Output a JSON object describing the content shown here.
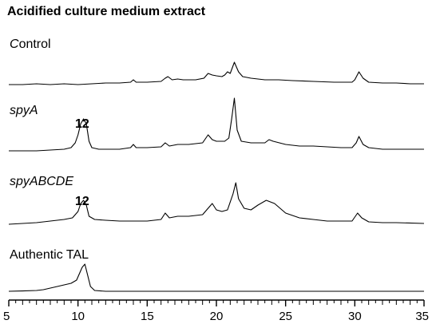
{
  "title": "Acidified culture medium extract",
  "traces": [
    {
      "label_first": "C",
      "label_rest": "ontrol"
    },
    {
      "label": "spyA",
      "italic": true
    },
    {
      "label": "spyABCDE",
      "italic": true
    },
    {
      "label": "Authentic TAL",
      "italic": false
    }
  ],
  "peak_labels": [
    {
      "text": "12",
      "trace": 1
    },
    {
      "text": "12",
      "trace": 2
    }
  ],
  "chart_data": {
    "type": "line",
    "title": "Acidified culture medium extract",
    "xlabel": "",
    "ylabel": "",
    "xlim": [
      5,
      35
    ],
    "xticks": [
      5,
      10,
      15,
      20,
      25,
      30,
      35
    ],
    "x_minor_step": 0.5,
    "grid": false,
    "legend": "none",
    "series": [
      {
        "name": "Control",
        "baseline": 0,
        "points": [
          [
            5,
            0
          ],
          [
            6,
            0
          ],
          [
            7,
            0.5
          ],
          [
            8,
            0
          ],
          [
            9,
            0.5
          ],
          [
            10,
            0
          ],
          [
            11,
            0.5
          ],
          [
            12,
            1
          ],
          [
            13,
            1
          ],
          [
            13.8,
            1.5
          ],
          [
            14,
            3
          ],
          [
            14.2,
            1.5
          ],
          [
            15,
            1.5
          ],
          [
            16,
            2
          ],
          [
            16.3,
            4
          ],
          [
            16.5,
            5
          ],
          [
            16.8,
            3
          ],
          [
            17.2,
            3.5
          ],
          [
            17.6,
            3
          ],
          [
            18.5,
            3
          ],
          [
            19.1,
            4
          ],
          [
            19.4,
            7
          ],
          [
            19.7,
            6
          ],
          [
            20,
            5.5
          ],
          [
            20.4,
            5
          ],
          [
            20.6,
            6
          ],
          [
            20.8,
            8
          ],
          [
            21,
            7
          ],
          [
            21.3,
            14
          ],
          [
            21.6,
            8
          ],
          [
            21.9,
            5
          ],
          [
            22.5,
            4
          ],
          [
            23.5,
            3
          ],
          [
            24.5,
            3
          ],
          [
            25.5,
            2.5
          ],
          [
            27,
            2
          ],
          [
            28.5,
            1.5
          ],
          [
            29.8,
            1.5
          ],
          [
            30,
            3
          ],
          [
            30.3,
            8
          ],
          [
            30.6,
            4
          ],
          [
            31,
            1.5
          ],
          [
            32,
            1
          ],
          [
            33,
            1
          ],
          [
            34,
            0.5
          ],
          [
            35,
            0.5
          ]
        ]
      },
      {
        "name": "spyA",
        "baseline": 0,
        "points": [
          [
            5,
            0
          ],
          [
            6,
            0
          ],
          [
            7,
            0
          ],
          [
            8,
            0.5
          ],
          [
            9,
            1
          ],
          [
            9.5,
            2
          ],
          [
            9.8,
            5
          ],
          [
            10,
            10
          ],
          [
            10.2,
            17
          ],
          [
            10.4,
            20
          ],
          [
            10.6,
            17
          ],
          [
            10.8,
            6
          ],
          [
            11,
            2
          ],
          [
            11.5,
            1
          ],
          [
            12,
            1
          ],
          [
            13,
            1
          ],
          [
            13.8,
            2
          ],
          [
            14,
            4
          ],
          [
            14.2,
            2
          ],
          [
            15,
            2
          ],
          [
            16,
            2.5
          ],
          [
            16.3,
            5
          ],
          [
            16.6,
            3
          ],
          [
            17.2,
            4
          ],
          [
            18,
            4
          ],
          [
            19,
            5
          ],
          [
            19.4,
            10
          ],
          [
            19.7,
            7
          ],
          [
            20,
            6
          ],
          [
            20.6,
            6
          ],
          [
            20.9,
            8
          ],
          [
            21.1,
            20
          ],
          [
            21.3,
            33
          ],
          [
            21.5,
            13
          ],
          [
            21.8,
            6
          ],
          [
            22.5,
            5
          ],
          [
            23.5,
            5
          ],
          [
            23.8,
            7
          ],
          [
            24.1,
            6
          ],
          [
            25,
            4
          ],
          [
            26,
            3
          ],
          [
            27,
            3
          ],
          [
            28,
            2.5
          ],
          [
            29,
            2
          ],
          [
            29.8,
            2
          ],
          [
            30.1,
            5
          ],
          [
            30.3,
            9
          ],
          [
            30.6,
            4
          ],
          [
            31,
            2
          ],
          [
            32,
            1
          ],
          [
            33,
            1
          ],
          [
            35,
            1
          ]
        ]
      },
      {
        "name": "spyABCDE",
        "baseline": 0,
        "points": [
          [
            5,
            0
          ],
          [
            6,
            0.5
          ],
          [
            7,
            1
          ],
          [
            8,
            2
          ],
          [
            9,
            3
          ],
          [
            9.6,
            4
          ],
          [
            10,
            8
          ],
          [
            10.2,
            13
          ],
          [
            10.4,
            15
          ],
          [
            10.6,
            12
          ],
          [
            10.8,
            5
          ],
          [
            11.2,
            3
          ],
          [
            12,
            2.5
          ],
          [
            13,
            2
          ],
          [
            14,
            2
          ],
          [
            15,
            2
          ],
          [
            16,
            3
          ],
          [
            16.3,
            7
          ],
          [
            16.6,
            4
          ],
          [
            17.2,
            5
          ],
          [
            18,
            5
          ],
          [
            19,
            6
          ],
          [
            19.4,
            10
          ],
          [
            19.7,
            13
          ],
          [
            20,
            9
          ],
          [
            20.4,
            8
          ],
          [
            20.8,
            9
          ],
          [
            21.2,
            19
          ],
          [
            21.4,
            26
          ],
          [
            21.6,
            16
          ],
          [
            22,
            10
          ],
          [
            22.5,
            9
          ],
          [
            23,
            12
          ],
          [
            23.6,
            15
          ],
          [
            24.2,
            13
          ],
          [
            25,
            7
          ],
          [
            26,
            4
          ],
          [
            27,
            3
          ],
          [
            28,
            2
          ],
          [
            29.8,
            2
          ],
          [
            30.2,
            7
          ],
          [
            30.5,
            4
          ],
          [
            31,
            1.5
          ],
          [
            32,
            1
          ],
          [
            33,
            1
          ],
          [
            35,
            0.5
          ]
        ]
      },
      {
        "name": "Authentic TAL",
        "baseline": 0,
        "points": [
          [
            5,
            0
          ],
          [
            6,
            0.2
          ],
          [
            7,
            0.5
          ],
          [
            7.5,
            1
          ],
          [
            8,
            2
          ],
          [
            8.5,
            3
          ],
          [
            9,
            4
          ],
          [
            9.5,
            5
          ],
          [
            9.9,
            7
          ],
          [
            10.1,
            11
          ],
          [
            10.3,
            15
          ],
          [
            10.5,
            17
          ],
          [
            10.7,
            10
          ],
          [
            10.9,
            3
          ],
          [
            11.2,
            0.5
          ],
          [
            12,
            0
          ],
          [
            35,
            0
          ]
        ]
      }
    ]
  }
}
